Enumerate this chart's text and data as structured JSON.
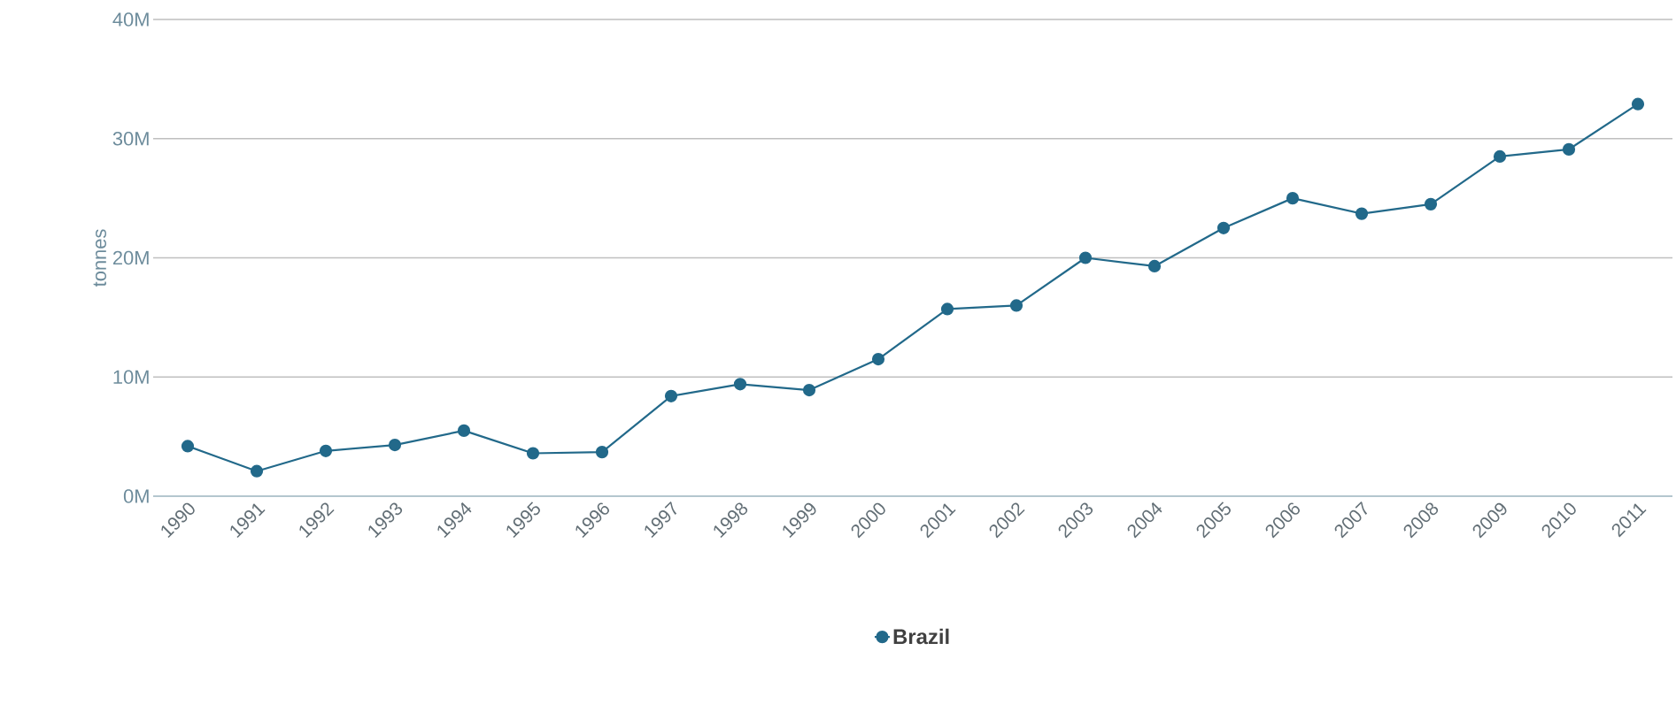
{
  "chart_data": {
    "type": "line",
    "ylabel": "tonnes",
    "categories": [
      "1990",
      "1991",
      "1992",
      "1993",
      "1994",
      "1995",
      "1996",
      "1997",
      "1998",
      "1999",
      "2000",
      "2001",
      "2002",
      "2003",
      "2004",
      "2005",
      "2006",
      "2007",
      "2008",
      "2009",
      "2010",
      "2011"
    ],
    "series": [
      {
        "name": "Brazil",
        "color": "#22698a",
        "values": [
          4.2,
          2.1,
          3.8,
          4.3,
          5.5,
          3.6,
          3.7,
          8.4,
          9.4,
          8.9,
          11.5,
          15.7,
          16.0,
          20.0,
          19.3,
          22.5,
          25.0,
          23.7,
          24.5,
          28.5,
          29.1,
          32.9
        ]
      }
    ],
    "ylim": [
      0,
      40
    ],
    "yticks": [
      {
        "value": 0,
        "label": "0M"
      },
      {
        "value": 10,
        "label": "10M"
      },
      {
        "value": 20,
        "label": "20M"
      },
      {
        "value": 30,
        "label": "30M"
      },
      {
        "value": 40,
        "label": "40M"
      }
    ],
    "grid": "y",
    "legend": "bottom",
    "marker": "circle",
    "line_style": "solid"
  }
}
